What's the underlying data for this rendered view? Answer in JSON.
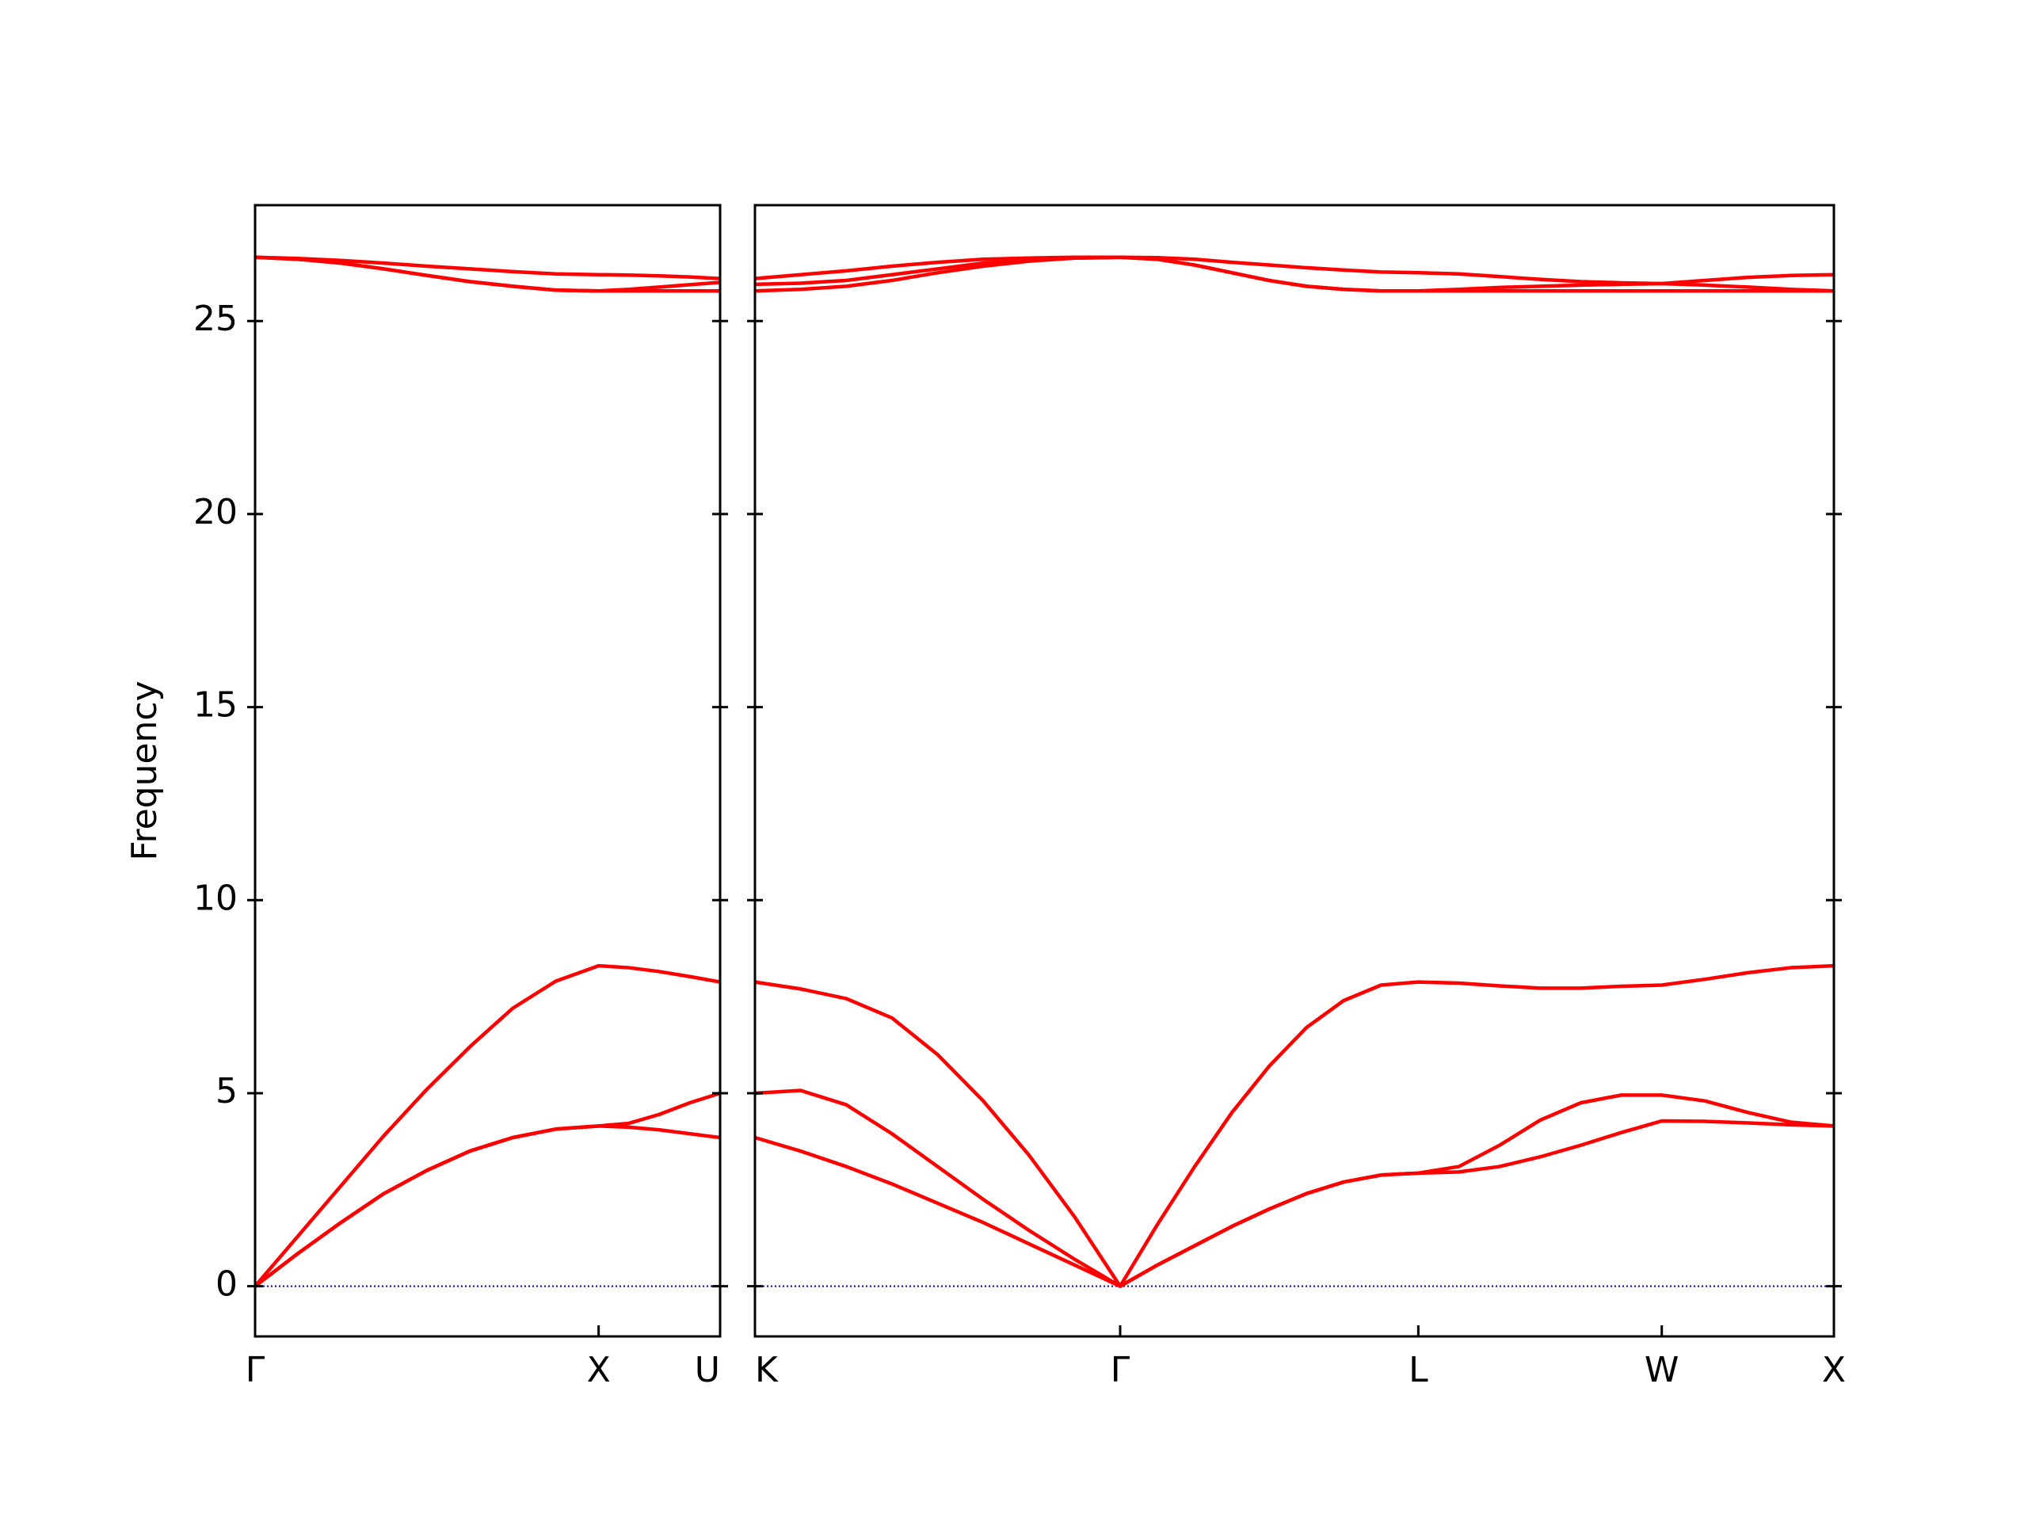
{
  "chart_data": [
    {
      "type": "line",
      "ylabel": "Frequency",
      "xlim": [
        0,
        1.3536
      ],
      "ylim": [
        -1.3,
        28
      ],
      "xticks": [
        {
          "value": 0,
          "label": "Γ"
        },
        {
          "value": 1,
          "label": "X"
        },
        {
          "value": 1.3536,
          "label": "U"
        }
      ],
      "yticks": [
        0,
        5,
        10,
        15,
        20,
        25
      ],
      "zero_line": {
        "value": 0,
        "color": "#0000cc"
      },
      "x": [
        0,
        0.125,
        0.25,
        0.375,
        0.5,
        0.625,
        0.75,
        0.875,
        1,
        1.0884,
        1.1768,
        1.2652,
        1.3536
      ],
      "series": [
        {
          "color": "#ff0000",
          "values": [
            0,
            0.85,
            1.65,
            2.4,
            3.0,
            3.5,
            3.85,
            4.07,
            4.15,
            4.12,
            4.05,
            3.95,
            3.85
          ]
        },
        {
          "color": "#ff0000",
          "values": [
            0,
            0.85,
            1.65,
            2.4,
            3.0,
            3.5,
            3.85,
            4.07,
            4.15,
            4.22,
            4.45,
            4.75,
            5.0
          ]
        },
        {
          "color": "#ff0000",
          "values": [
            0,
            1.3,
            2.6,
            3.9,
            5.1,
            6.2,
            7.2,
            7.9,
            8.3,
            8.25,
            8.15,
            8.02,
            7.88
          ]
        },
        {
          "color": "#ff0000",
          "values": [
            26.65,
            26.6,
            26.5,
            26.35,
            26.18,
            26.02,
            25.9,
            25.8,
            25.78,
            25.78,
            25.78,
            25.78,
            25.78
          ]
        },
        {
          "color": "#ff0000",
          "values": [
            26.65,
            26.6,
            26.5,
            26.35,
            26.18,
            26.02,
            25.9,
            25.8,
            25.78,
            25.82,
            25.88,
            25.94,
            26.0
          ]
        },
        {
          "color": "#ff0000",
          "values": [
            26.65,
            26.62,
            26.57,
            26.5,
            26.42,
            26.35,
            26.28,
            26.22,
            26.2,
            26.19,
            26.17,
            26.14,
            26.1
          ]
        }
      ]
    },
    {
      "type": "line",
      "xlim": [
        1.3536,
        4.4874
      ],
      "ylim": [
        -1.3,
        28
      ],
      "xticks": [
        {
          "value": 1.3536,
          "label": "K"
        },
        {
          "value": 2.4143,
          "label": "Γ"
        },
        {
          "value": 3.2803,
          "label": "L"
        },
        {
          "value": 3.9874,
          "label": "W"
        },
        {
          "value": 4.4874,
          "label": "X"
        }
      ],
      "yticks": [
        0,
        5,
        10,
        15,
        20,
        25
      ],
      "zero_line": {
        "value": 0,
        "color": "#0000cc"
      },
      "x": [
        1.3536,
        1.4862,
        1.6188,
        1.7514,
        1.884,
        2.0165,
        2.1491,
        2.2817,
        2.4143,
        2.5226,
        2.6308,
        2.7391,
        2.8473,
        2.9556,
        3.0638,
        3.1721,
        3.2803,
        3.3982,
        3.5161,
        3.6339,
        3.7518,
        3.8696,
        3.9874,
        4.1124,
        4.2374,
        4.3624,
        4.4874
      ],
      "series": [
        {
          "color": "#ff0000",
          "values": [
            3.85,
            3.5,
            3.1,
            2.65,
            2.15,
            1.65,
            1.1,
            0.55,
            0,
            0.55,
            1.05,
            1.55,
            2.0,
            2.4,
            2.7,
            2.88,
            2.93,
            2.96,
            3.1,
            3.35,
            3.65,
            3.98,
            4.28,
            4.27,
            4.23,
            4.18,
            4.15
          ]
        },
        {
          "color": "#ff0000",
          "values": [
            5.0,
            5.07,
            4.7,
            3.95,
            3.1,
            2.25,
            1.45,
            0.7,
            0,
            0.55,
            1.05,
            1.55,
            2.0,
            2.4,
            2.7,
            2.88,
            2.93,
            3.1,
            3.65,
            4.3,
            4.75,
            4.95,
            4.95,
            4.8,
            4.5,
            4.25,
            4.15
          ]
        },
        {
          "color": "#ff0000",
          "values": [
            7.88,
            7.7,
            7.45,
            6.95,
            6.0,
            4.8,
            3.4,
            1.8,
            0,
            1.6,
            3.1,
            4.5,
            5.7,
            6.7,
            7.4,
            7.8,
            7.88,
            7.85,
            7.78,
            7.72,
            7.72,
            7.77,
            7.8,
            7.95,
            8.12,
            8.25,
            8.3
          ]
        },
        {
          "color": "#ff0000",
          "values": [
            25.78,
            25.82,
            25.9,
            26.05,
            26.25,
            26.42,
            26.55,
            26.63,
            26.65,
            26.6,
            26.45,
            26.25,
            26.05,
            25.9,
            25.82,
            25.78,
            25.78,
            25.78,
            25.78,
            25.78,
            25.78,
            25.78,
            25.78,
            25.78,
            25.78,
            25.78,
            25.78
          ]
        },
        {
          "color": "#ff0000",
          "values": [
            25.95,
            25.98,
            26.05,
            26.2,
            26.35,
            26.5,
            26.58,
            26.63,
            26.65,
            26.6,
            26.45,
            26.25,
            26.05,
            25.9,
            25.82,
            25.78,
            25.78,
            25.82,
            25.87,
            25.9,
            25.93,
            25.95,
            25.97,
            25.93,
            25.88,
            25.82,
            25.78
          ]
        },
        {
          "color": "#ff0000",
          "values": [
            26.1,
            26.2,
            26.3,
            26.42,
            26.52,
            26.6,
            26.63,
            26.65,
            26.65,
            26.64,
            26.6,
            26.52,
            26.45,
            26.38,
            26.32,
            26.27,
            26.25,
            26.22,
            26.15,
            26.08,
            26.02,
            25.99,
            25.97,
            26.05,
            26.13,
            26.18,
            26.2
          ]
        }
      ]
    }
  ]
}
